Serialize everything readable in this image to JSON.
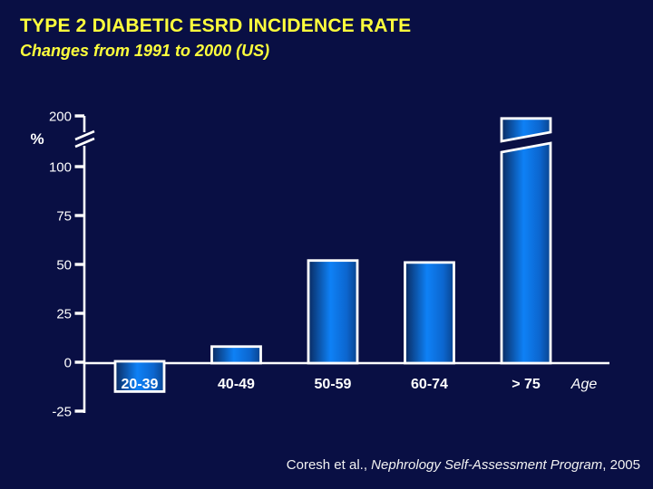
{
  "slide": {
    "title": "TYPE 2 DIABETIC ESRD INCIDENCE RATE",
    "subtitle": "Changes from 1991 to 2000 (US)",
    "title_color": "#feff3c",
    "background_color": "#090f44"
  },
  "footer": {
    "citation_regular": "Coresh et al., ",
    "citation_italic": "Nephrology Self-Assessment Program",
    "citation_suffix": ", 2005"
  },
  "chart_data": {
    "type": "bar",
    "title": "Type 2 diabetic ESRD incidence rate change 1991-2000 (US)",
    "ylabel": "%",
    "xlabel": "Age",
    "categories": [
      "20-39",
      "40-49",
      "50-59",
      "60-74",
      "> 75"
    ],
    "values": [
      -15,
      8,
      52,
      51,
      195
    ],
    "yticks": [
      200,
      100,
      75,
      50,
      25,
      0,
      -25
    ],
    "ylim": [
      -25,
      200
    ],
    "grid": false,
    "legend": false,
    "axis_break": {
      "between": [
        100,
        200
      ],
      "note": "y-axis has a break between 100 and 200; the > 75 bar is drawn split across the break"
    },
    "highlighted_category": "20-39",
    "notes": "20-39 bar is negative; its category label sits inside the bar below the zero baseline",
    "bar_outline_color": "#ffffff",
    "bar_gradient": [
      "#0a2a60",
      "#0e81f6",
      "#0c66cf",
      "#09448f"
    ],
    "axis_color": "#ffffff",
    "label_color": "#ffffff"
  }
}
